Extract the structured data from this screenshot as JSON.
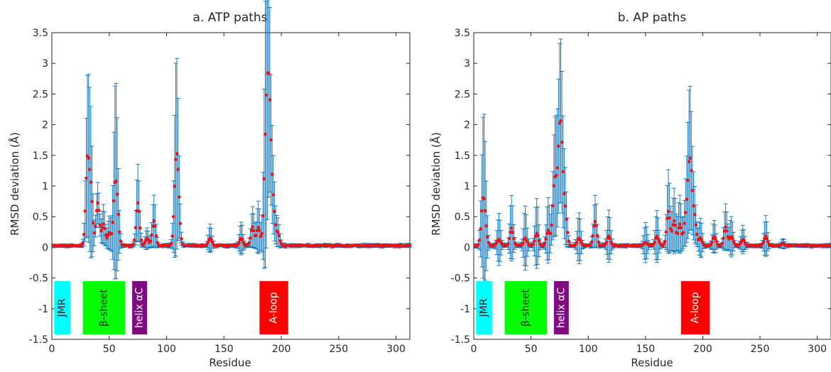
{
  "chart_data": [
    {
      "type": "scatter",
      "title": "a. ATP paths",
      "xlabel": "Residue",
      "ylabel": "RMSD deviation (Å)",
      "xlim": [
        0,
        312
      ],
      "ylim": [
        -1.5,
        3.5
      ],
      "x_ticks": [
        "0",
        "50",
        "100",
        "150",
        "200",
        "250",
        "300"
      ],
      "y_ticks": [
        "-1.5",
        "-1",
        "-0.5",
        "0",
        "0.5",
        "1",
        "1.5",
        "2",
        "2.5",
        "3",
        "3.5"
      ],
      "grid": false,
      "errorbar_color": "#0072BD",
      "marker_color": "#E8141B",
      "peaks": [
        {
          "x": 31,
          "value": 1.35,
          "err": 1.15
        },
        {
          "x": 34,
          "value": 0.85,
          "err": 1.05
        },
        {
          "x": 40,
          "value": 0.7,
          "err": 0.3
        },
        {
          "x": 45,
          "value": 0.35,
          "err": 0.3
        },
        {
          "x": 50,
          "value": 0.2,
          "err": 0.25
        },
        {
          "x": 55,
          "value": 0.82,
          "err": 1.25
        },
        {
          "x": 57,
          "value": 0.5,
          "err": 0.7
        },
        {
          "x": 75,
          "value": 0.7,
          "err": 0.6
        },
        {
          "x": 83,
          "value": 0.12,
          "err": 0.15
        },
        {
          "x": 89,
          "value": 0.4,
          "err": 0.4
        },
        {
          "x": 108,
          "value": 1.08,
          "err": 1.3
        },
        {
          "x": 110,
          "value": 0.8,
          "err": 0.6
        },
        {
          "x": 138,
          "value": 0.12,
          "err": 0.2
        },
        {
          "x": 165,
          "value": 0.12,
          "err": 0.25
        },
        {
          "x": 175,
          "value": 0.3,
          "err": 0.3
        },
        {
          "x": 180,
          "value": 0.3,
          "err": 0.4
        },
        {
          "x": 186,
          "value": 1.05,
          "err": 1.55
        },
        {
          "x": 188,
          "value": 1.75,
          "err": 1.4
        },
        {
          "x": 190,
          "value": 1.55,
          "err": 0.8
        },
        {
          "x": 193,
          "value": 0.6,
          "err": 0.5
        },
        {
          "x": 197,
          "value": 0.2,
          "err": 0.2
        }
      ],
      "regions": [
        {
          "label": "JMR",
          "x0": 2,
          "x1": 16,
          "color": "#00FFFF"
        },
        {
          "label": "β-sheet",
          "x0": 27,
          "x1": 64,
          "color": "#00FF00"
        },
        {
          "label": "helix αC",
          "x0": 70,
          "x1": 83,
          "color": "#7E0B80"
        },
        {
          "label": "A-loop",
          "x0": 181,
          "x1": 206,
          "color": "#FF0000"
        }
      ]
    },
    {
      "type": "scatter",
      "title": "b. AP paths",
      "xlabel": "Residue",
      "ylabel": "RMSD deviation (Å)",
      "xlim": [
        0,
        312
      ],
      "ylim": [
        -1.5,
        3.5
      ],
      "x_ticks": [
        "0",
        "50",
        "100",
        "150",
        "200",
        "250",
        "300"
      ],
      "y_ticks": [
        "-1.5",
        "-1",
        "-0.5",
        "0",
        "0.5",
        "1",
        "1.5",
        "2",
        "2.5",
        "3",
        "3.5"
      ],
      "grid": false,
      "errorbar_color": "#0072BD",
      "marker_color": "#E8141B",
      "peaks": [
        {
          "x": 8,
          "value": 0.65,
          "err": 1.0
        },
        {
          "x": 10,
          "value": 0.3,
          "err": 0.7
        },
        {
          "x": 22,
          "value": 0.1,
          "err": 0.4
        },
        {
          "x": 33,
          "value": 0.28,
          "err": 0.5
        },
        {
          "x": 45,
          "value": 0.12,
          "err": 0.5
        },
        {
          "x": 55,
          "value": 0.2,
          "err": 0.55
        },
        {
          "x": 65,
          "value": 0.25,
          "err": 0.5
        },
        {
          "x": 70,
          "value": 0.7,
          "err": 0.55
        },
        {
          "x": 72,
          "value": 0.65,
          "err": 0.6
        },
        {
          "x": 75,
          "value": 1.5,
          "err": 0.9
        },
        {
          "x": 77,
          "value": 1.0,
          "err": 0.7
        },
        {
          "x": 80,
          "value": 0.5,
          "err": 0.5
        },
        {
          "x": 92,
          "value": 0.12,
          "err": 0.4
        },
        {
          "x": 106,
          "value": 0.4,
          "err": 0.4
        },
        {
          "x": 118,
          "value": 0.15,
          "err": 0.4
        },
        {
          "x": 150,
          "value": 0.05,
          "err": 0.3
        },
        {
          "x": 160,
          "value": 0.15,
          "err": 0.4
        },
        {
          "x": 170,
          "value": 0.55,
          "err": 0.65
        },
        {
          "x": 175,
          "value": 0.4,
          "err": 0.5
        },
        {
          "x": 180,
          "value": 0.35,
          "err": 0.45
        },
        {
          "x": 185,
          "value": 0.4,
          "err": 0.4
        },
        {
          "x": 188,
          "value": 1.0,
          "err": 0.85
        },
        {
          "x": 190,
          "value": 0.75,
          "err": 0.55
        },
        {
          "x": 193,
          "value": 0.4,
          "err": 0.35
        },
        {
          "x": 198,
          "value": 0.12,
          "err": 0.3
        },
        {
          "x": 210,
          "value": 0.15,
          "err": 0.25
        },
        {
          "x": 220,
          "value": 0.3,
          "err": 0.35
        },
        {
          "x": 225,
          "value": 0.15,
          "err": 0.3
        },
        {
          "x": 235,
          "value": 0.1,
          "err": 0.2
        },
        {
          "x": 255,
          "value": 0.15,
          "err": 0.3
        },
        {
          "x": 270,
          "value": 0.03,
          "err": 0.06
        }
      ],
      "regions": [
        {
          "label": "JMR",
          "x0": 2,
          "x1": 16,
          "color": "#00FFFF"
        },
        {
          "label": "β-sheet",
          "x0": 27,
          "x1": 64,
          "color": "#00FF00"
        },
        {
          "label": "helix αC",
          "x0": 70,
          "x1": 83,
          "color": "#7E0B80"
        },
        {
          "label": "A-loop",
          "x0": 181,
          "x1": 206,
          "color": "#FF0000"
        }
      ]
    }
  ]
}
